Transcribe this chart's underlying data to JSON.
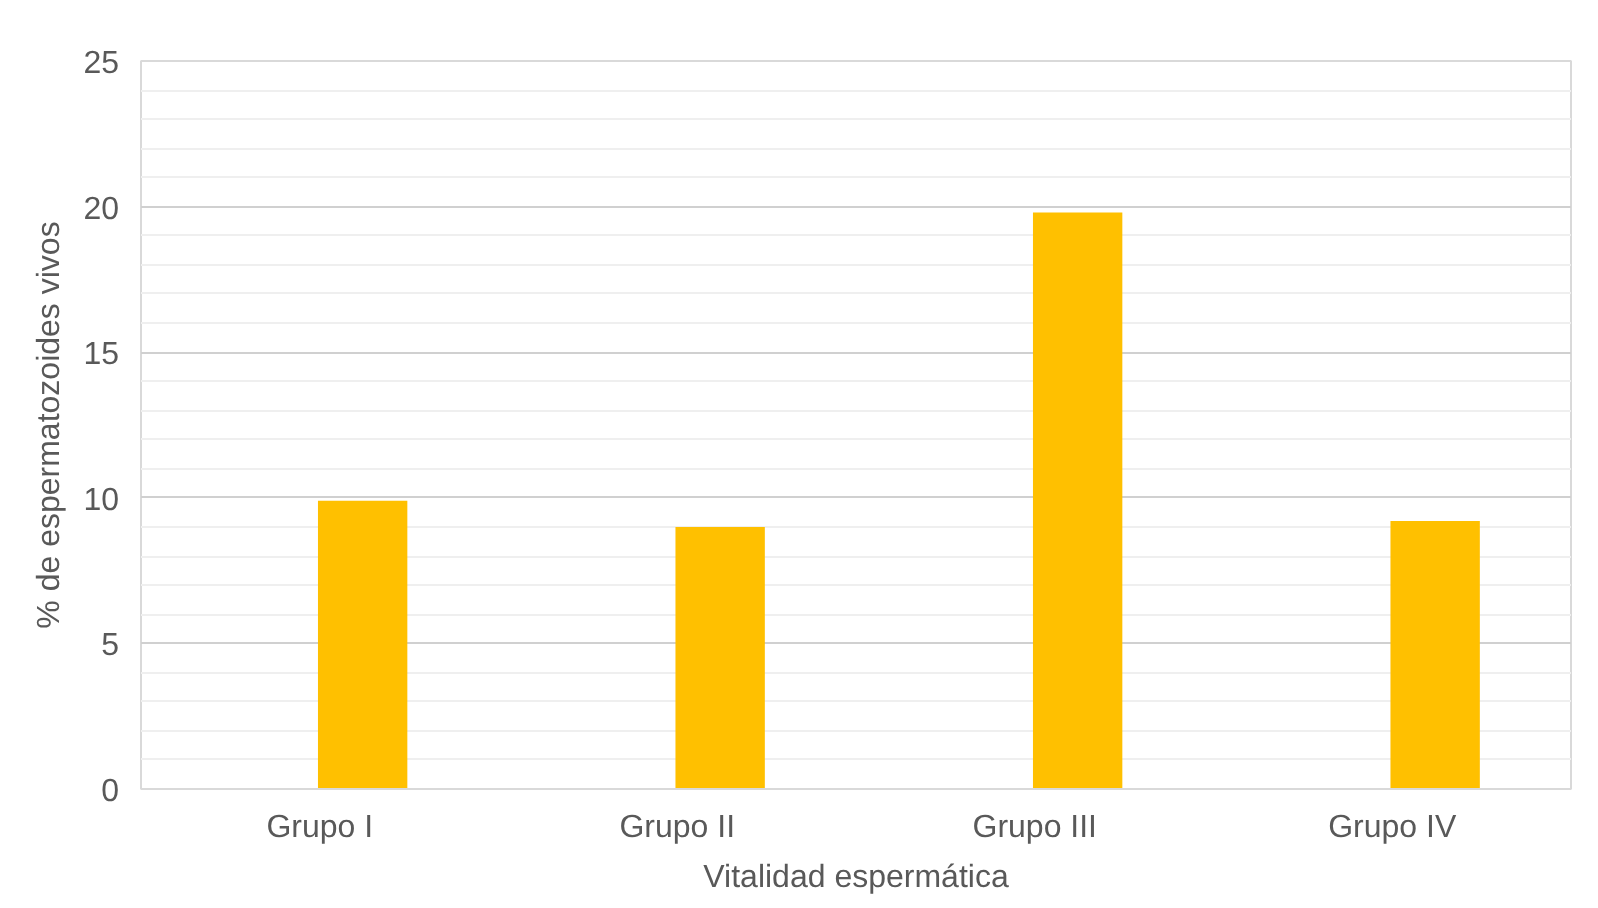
{
  "chart_data": {
    "type": "bar",
    "xlabel": "Vitalidad espermática",
    "ylabel": "% de espermatozoides vivos",
    "categories": [
      "Grupo I",
      "Grupo II",
      "Grupo III",
      "Grupo IV"
    ],
    "series": [
      {
        "color": "#ffc000",
        "values": [
          9.9,
          9.0,
          19.8,
          9.2
        ]
      }
    ],
    "ylim": [
      0,
      25
    ],
    "yticks": [
      0,
      5,
      10,
      15,
      20,
      25
    ],
    "grid": "y"
  }
}
